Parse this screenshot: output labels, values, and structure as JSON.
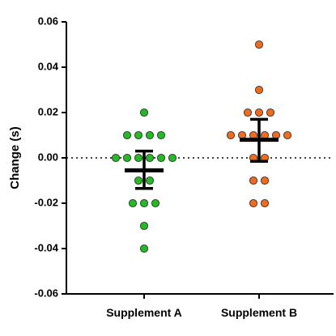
{
  "chart_data": {
    "type": "scatter",
    "title": "",
    "xlabel": "",
    "ylabel": "Change (s)",
    "ylim": [
      -0.06,
      0.06
    ],
    "yticks": [
      -0.06,
      -0.04,
      -0.02,
      0.0,
      0.02,
      0.04,
      0.06
    ],
    "ytick_labels": [
      "-0.06",
      "-0.04",
      "-0.02",
      "0.00",
      "0.02",
      "0.04",
      "0.06"
    ],
    "reference_line": 0,
    "categories": [
      "Supplement A",
      "Supplement B"
    ],
    "series": [
      {
        "category": "Supplement A",
        "color": "#22bb22",
        "points": [
          0.02,
          0.01,
          0.01,
          0.01,
          0.01,
          0.0,
          0.0,
          0.0,
          0.0,
          0.0,
          0.0,
          -0.01,
          -0.01,
          -0.02,
          -0.02,
          -0.02,
          -0.03,
          -0.04
        ],
        "mean": -0.0055,
        "error_low": -0.0135,
        "error_high": 0.003
      },
      {
        "category": "Supplement B",
        "color": "#f26a1b",
        "points": [
          0.05,
          0.03,
          0.02,
          0.02,
          0.02,
          0.01,
          0.01,
          0.01,
          0.01,
          0.01,
          0.01,
          0.0,
          0.0,
          -0.01,
          -0.01,
          -0.02,
          -0.02
        ],
        "mean": 0.008,
        "error_low": -0.0015,
        "error_high": 0.017
      }
    ]
  }
}
